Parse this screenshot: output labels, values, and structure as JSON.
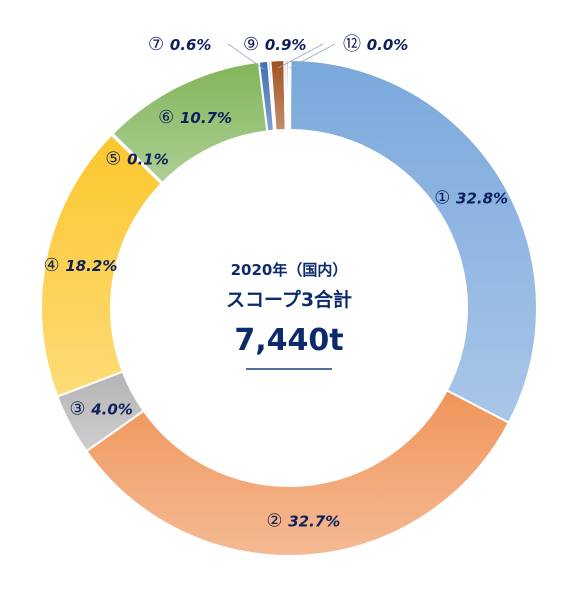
{
  "chart_data": {
    "type": "pie",
    "donut": true,
    "center": {
      "line1": "2020年（国内）",
      "line2": "スコープ3合計",
      "total": "7,440t"
    },
    "slices": [
      {
        "marker": "①",
        "label": "32.8%",
        "value": 32.8,
        "color": "#7aa8dc"
      },
      {
        "marker": "②",
        "label": "32.7%",
        "value": 32.7,
        "color": "#f0955a"
      },
      {
        "marker": "③",
        "label": "4.0%",
        "value": 4.0,
        "color": "#b4b4b4"
      },
      {
        "marker": "④",
        "label": "18.2%",
        "value": 18.2,
        "color": "#fcc72e"
      },
      {
        "marker": "⑤",
        "label": "0.1%",
        "value": 0.1,
        "color": "#f2a64a"
      },
      {
        "marker": "⑥",
        "label": "10.7%",
        "value": 10.7,
        "color": "#82b55a"
      },
      {
        "marker": "⑦",
        "label": "0.6%",
        "value": 0.6,
        "color": "#3f6fb5"
      },
      {
        "marker": "",
        "label": "",
        "value": 0.15,
        "color": "#1f3a70"
      },
      {
        "marker": "⑨",
        "label": "0.9%",
        "value": 0.9,
        "color": "#a0521e"
      },
      {
        "marker": "",
        "label": "",
        "value": 0.15,
        "color": "#2e6a3a"
      },
      {
        "marker": "",
        "label": "",
        "value": 0.15,
        "color": "#8e3a7a"
      },
      {
        "marker": "⑫",
        "label": "0.0%",
        "value": 0.0,
        "color": "#e87b2a"
      }
    ]
  }
}
